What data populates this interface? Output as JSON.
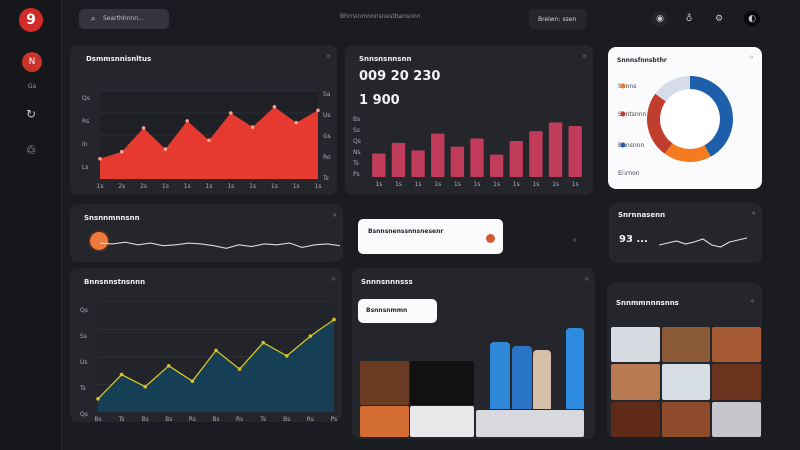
{
  "brand": {
    "logo_text": "9"
  },
  "sidebar": {
    "avatar_initial": "N",
    "caption": "Ga",
    "items": [
      {
        "icon": "refresh-icon"
      },
      {
        "icon": "recycle-icon"
      }
    ]
  },
  "topbar": {
    "search_text": "Searthhnnn...",
    "center_text": "Bhrrsinmnnnsnestbansnnn",
    "button_label": "Breiwn: ssen",
    "icons": [
      "globe-icon",
      "bell-icon",
      "settings-icon",
      "moon-icon"
    ]
  },
  "cards": {
    "revenue": {
      "title": "Dsmmsnnisnltus",
      "menu": "◦",
      "y_ticks": [
        "Qs",
        "Rs",
        "In",
        "Ls"
      ],
      "right_ticks": [
        "Sa",
        "Us",
        "Gs",
        "Ro",
        "Ts"
      ],
      "x_ticks": [
        "1s",
        "2s",
        "2s",
        "1s",
        "1s",
        "1s",
        "1s",
        "1s",
        "1s",
        "1s",
        "1s"
      ]
    },
    "bars": {
      "title": "Snnsnsnnsnn",
      "menu": "◦",
      "value1": "009  20  230",
      "value2": "1 900",
      "y_ticks": [
        "Bs",
        "Ss",
        "Qs",
        "Ns",
        "Ts",
        "Ps"
      ],
      "x_ticks": [
        "1s",
        "1s",
        "1s",
        "1s",
        "1s",
        "1s",
        "1s",
        "1s",
        "1s",
        "1s",
        "1s"
      ]
    },
    "donut": {
      "title": "Snnnsfnnsbthr",
      "menu": "◦",
      "items": [
        "Snnns",
        "Sbntsnnn",
        "Bnnsnnn",
        "Bnrnon"
      ]
    },
    "sparkline": {
      "title": "Snsnnmnnsnn",
      "menu": "◦"
    },
    "notice": {
      "text": "Bsnnsnenssnnsnesenr",
      "menu": "◦"
    },
    "stats": {
      "title": "Snrnnasenn",
      "menu": "◦",
      "value": "93 ..."
    },
    "teal": {
      "title": "Bnnsnnstnsnnn",
      "menu": "◦",
      "y_ticks": [
        "Qs",
        "Ss",
        "Us",
        "Ts",
        "Qs"
      ],
      "x_ticks": [
        "Bs",
        "Ts",
        "Bs",
        "Bs",
        "Rs",
        "Bs",
        "Rs",
        "Ts",
        "Bs",
        "Rs",
        "Ps"
      ]
    },
    "gallery": {
      "title": "Snnnsnnnsss",
      "menu": "◦",
      "pill": "Bsnnsnmmn"
    },
    "tiles": {
      "title": "Snnmmnnnsnns",
      "menu": "◦"
    }
  },
  "chart_data": [
    {
      "type": "area",
      "title": "Dsmmsnnisnltus",
      "categories": [
        "1s",
        "2s",
        "2s",
        "1s",
        "1s",
        "1s",
        "1s",
        "1s",
        "1s",
        "1s",
        "1s"
      ],
      "values": [
        23,
        31,
        58,
        34,
        66,
        44,
        75,
        59,
        82,
        64,
        78
      ],
      "ylim": [
        0,
        100
      ],
      "color": "#e6392f"
    },
    {
      "type": "bar",
      "title": "Snnsnsnnsnn",
      "categories": [
        "1s",
        "1s",
        "1s",
        "1s",
        "1s",
        "1s",
        "1s",
        "1s",
        "1s",
        "1s",
        "1s"
      ],
      "values": [
        38,
        55,
        43,
        70,
        49,
        62,
        36,
        58,
        74,
        88,
        82
      ],
      "ylim": [
        0,
        100
      ],
      "color": "#c13b5b"
    },
    {
      "type": "pie",
      "title": "Snnnsfnnsbthr",
      "categories": [
        "Snnns",
        "Sbntsnnn",
        "Bnnsnnn",
        "Bnrnon"
      ],
      "values": [
        42,
        18,
        25,
        15
      ],
      "colors": [
        "#1e5fab",
        "#f47b20",
        "#c13d2d",
        "#d6dde8"
      ]
    },
    {
      "type": "line",
      "title": "Snsnnmnnsnn",
      "values": [
        17,
        16,
        18,
        15,
        17,
        14,
        15,
        17,
        16,
        14,
        11,
        15,
        13,
        16,
        15,
        17,
        12,
        15,
        16,
        14
      ],
      "ylim": [
        0,
        25
      ],
      "color": "#d7d8de"
    },
    {
      "type": "area",
      "title": "Bnnsnnstnsnnn",
      "categories": [
        "Bs",
        "Ts",
        "Bs",
        "Bs",
        "Rs",
        "Bs",
        "Rs",
        "Ts",
        "Bs",
        "Rs",
        "Ps"
      ],
      "values": [
        12,
        34,
        23,
        42,
        28,
        56,
        39,
        63,
        51,
        69,
        84
      ],
      "ylim": [
        0,
        100
      ],
      "color": "#163f56",
      "line_color": "#d8c325"
    }
  ],
  "colors": {
    "accent": "#d62b2b",
    "panel": "#25262c",
    "light_panel": "#fbfbfd",
    "teal": "#163f56",
    "yellow": "#d8c325"
  }
}
